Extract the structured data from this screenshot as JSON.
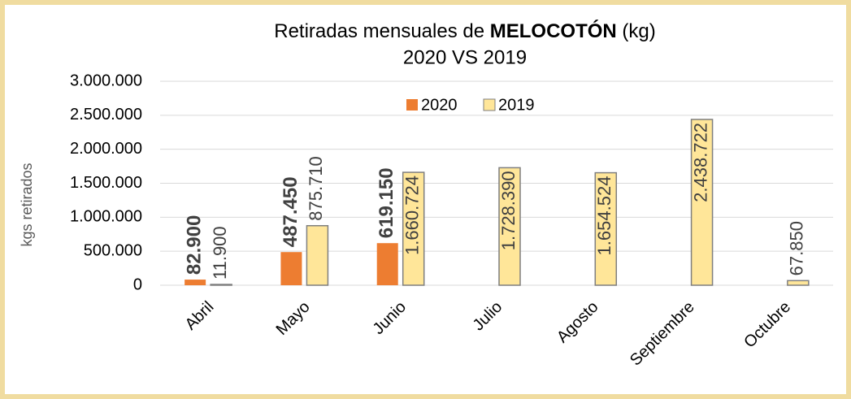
{
  "chart_data": {
    "type": "bar",
    "title": [
      "Retiradas mensuales de ",
      "MELOCOTÓN",
      " (kg)"
    ],
    "subtitle": "2020 VS 2019",
    "y_label": "kgs retirados",
    "categories": [
      "Abril",
      "Mayo",
      "Junio",
      "Julio",
      "Agosto",
      "Septiembre",
      "Octubre"
    ],
    "series": [
      {
        "name": "2020",
        "color": "#ed7d31",
        "values": [
          82900,
          487450,
          619150,
          null,
          null,
          null,
          null
        ],
        "value_labels": [
          "82.900",
          "487.450",
          "619.150",
          null,
          null,
          null,
          null
        ]
      },
      {
        "name": "2019",
        "color": "#ffe699",
        "values": [
          11900,
          875710,
          1660724,
          1728390,
          1654524,
          2438722,
          67850
        ],
        "value_labels": [
          "11.900",
          "875.710",
          "1.660.724",
          "1.728.390",
          "1.654.524",
          "2.438.722",
          "67.850"
        ]
      }
    ],
    "ylim": [
      0,
      3000000
    ],
    "yticks": [
      0,
      {
        "value": 500000,
        "label": "500.000"
      },
      {
        "value": 1000000,
        "label": "1.000.000"
      },
      {
        "value": 1500000,
        "label": "1.500.000"
      },
      {
        "value": 2000000,
        "label": "2.000.000"
      },
      {
        "value": 2500000,
        "label": "2.500.000"
      },
      {
        "value": 3000000,
        "label": "3.000.000"
      }
    ],
    "grid": true,
    "legend": "top"
  }
}
